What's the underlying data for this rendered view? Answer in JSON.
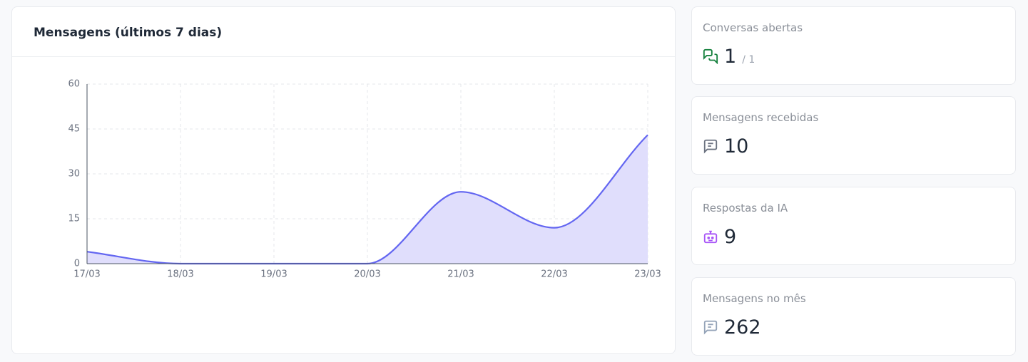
{
  "chart_data": {
    "type": "area",
    "title": "Mensagens (últimos 7 dias)",
    "categories": [
      "17/03",
      "18/03",
      "19/03",
      "20/03",
      "21/03",
      "22/03",
      "23/03"
    ],
    "values": [
      4,
      0,
      0,
      0,
      24,
      12,
      43
    ],
    "color": "#6366f1",
    "fill": "#e0defc",
    "ylim": [
      0,
      60
    ],
    "yticks": [
      0,
      15,
      30,
      45,
      60
    ],
    "grid": true
  },
  "cards": [
    {
      "label": "Conversas abertas",
      "value": 1,
      "sub": "/ 1"
    },
    {
      "label": "Mensagens recebidas",
      "value": 10
    },
    {
      "label": "Respostas da IA",
      "value": 9
    },
    {
      "label": "Mensagens no mês",
      "value": 262
    }
  ]
}
